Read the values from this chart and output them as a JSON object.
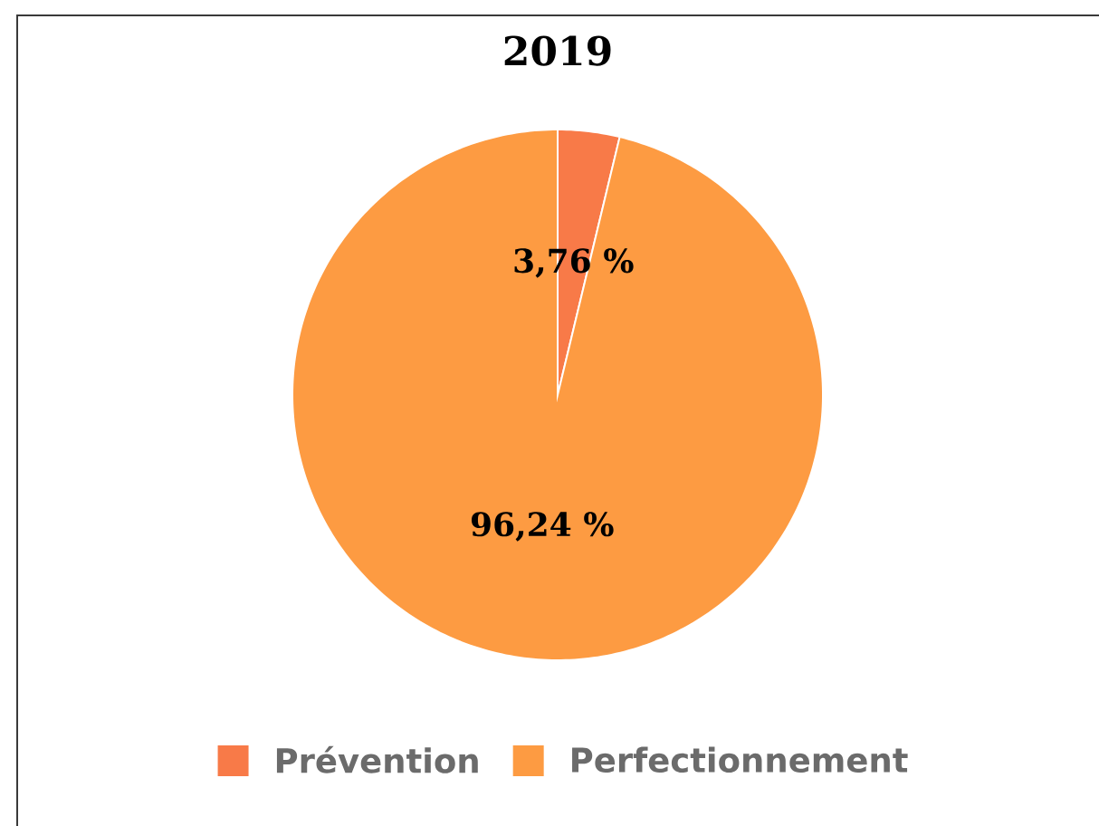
{
  "chart_data": {
    "type": "pie",
    "title": "2019",
    "categories": [
      "Prévention",
      "Perfectionnement"
    ],
    "values": [
      3.76,
      96.24
    ],
    "colors": [
      "#f87a48",
      "#fd9b42"
    ],
    "value_labels": [
      "3,76 %",
      "96,24 %"
    ],
    "legend": "bottom"
  }
}
